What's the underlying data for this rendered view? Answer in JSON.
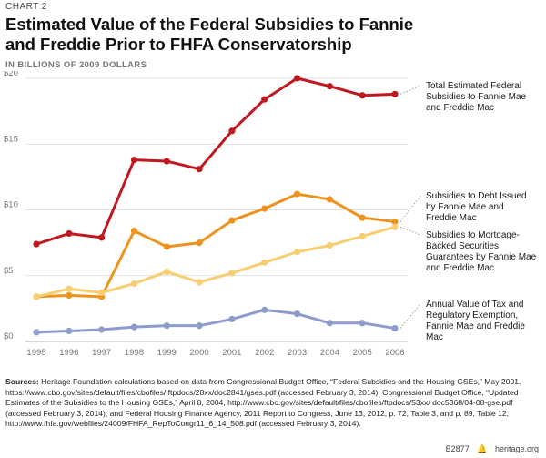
{
  "header": {
    "chart_label": "CHART 2",
    "title": "Estimated Value of the Federal Subsidies to Fannie and Freddie Prior to FHFA Conservatorship",
    "subtitle": "IN BILLIONS OF 2009 DOLLARS"
  },
  "chart_data": {
    "type": "line",
    "x": [
      1995,
      1996,
      1997,
      1998,
      1999,
      2000,
      2001,
      2002,
      2003,
      2004,
      2005,
      2006
    ],
    "ylim": [
      0,
      20
    ],
    "yticks": [
      "$0",
      "$5",
      "$10",
      "$15",
      "$20"
    ],
    "grid": true,
    "series": [
      {
        "name": "Total Estimated Federal Subsidies to Fannie Mae and Freddie Mac",
        "color": "#c0181f",
        "values": [
          7.4,
          8.2,
          7.9,
          13.8,
          13.7,
          13.1,
          16.0,
          18.4,
          20.0,
          19.4,
          18.7,
          18.8
        ]
      },
      {
        "name": "Subsidies to Debt Issued by Fannie Mae and Freddie Mac",
        "color": "#ee921f",
        "values": [
          3.4,
          3.5,
          3.4,
          8.4,
          7.2,
          7.5,
          9.2,
          10.1,
          11.2,
          10.8,
          9.4,
          9.1
        ]
      },
      {
        "name": "Subsidies to Mortgage-Backed Securities Guarantees by Fannie Mae and Freddie Mac",
        "color": "#f7cf72",
        "values": [
          3.4,
          4.0,
          3.7,
          4.4,
          5.3,
          4.5,
          5.2,
          6.0,
          6.8,
          7.3,
          8.0,
          8.7
        ]
      },
      {
        "name": "Annual Value of Tax and Regulatory Exemption, Fannie Mae and Freddie Mac",
        "color": "#8e9ccc",
        "values": [
          0.7,
          0.8,
          0.9,
          1.1,
          1.2,
          1.2,
          1.7,
          2.4,
          2.1,
          1.4,
          1.4,
          1.0
        ]
      }
    ]
  },
  "legend": {
    "total": [
      "Total Estimated Federal",
      "Subsidies to Fannie Mae",
      "and Freddie Mac"
    ],
    "debt": [
      "Subsidies to Debt Issued",
      "by Fannie Mae and",
      "Freddie Mac"
    ],
    "mbs": [
      "Subsidies to Mortgage-",
      "Backed Securities",
      "Guarantees by Fannie Mae",
      "and Freddie Mac"
    ],
    "tax": [
      "Annual Value of Tax and",
      "Regulatory Exemption,",
      "Fannie Mae and Freddie",
      "Mac"
    ]
  },
  "source": {
    "label": "Sources:",
    "text": "Heritage Foundation calculations based on data from Congressional Budget Office, “Federal Subsidies and the Housing GSEs,” May 2001, https://www.cbo.gov/sites/default/files/cbofiles/ ftpdocs/28xx/doc2841/gses.pdf (accessed February 3, 2014); Congressional Budget Office, “Updated Estimates of the Subsidies to the Housing GSEs,” April 8, 2004, http://www.cbo.gov/sites/default/files/cbofiles/ftpdocs/53xx/ doc5368/04-08-gse.pdf (accessed February 3, 2014); and Federal Housing Finance Agency, 2011 Report to Congress, June 13, 2012, p. 72, Table 3, and p. 89, Table 12, http://www.fhfa.gov/webfiles/24009/FHFA_RepToCongr11_6_14_508.pdf (accessed February 3, 2014)."
  },
  "footer": {
    "code": "B2877",
    "site": "heritage.org"
  }
}
